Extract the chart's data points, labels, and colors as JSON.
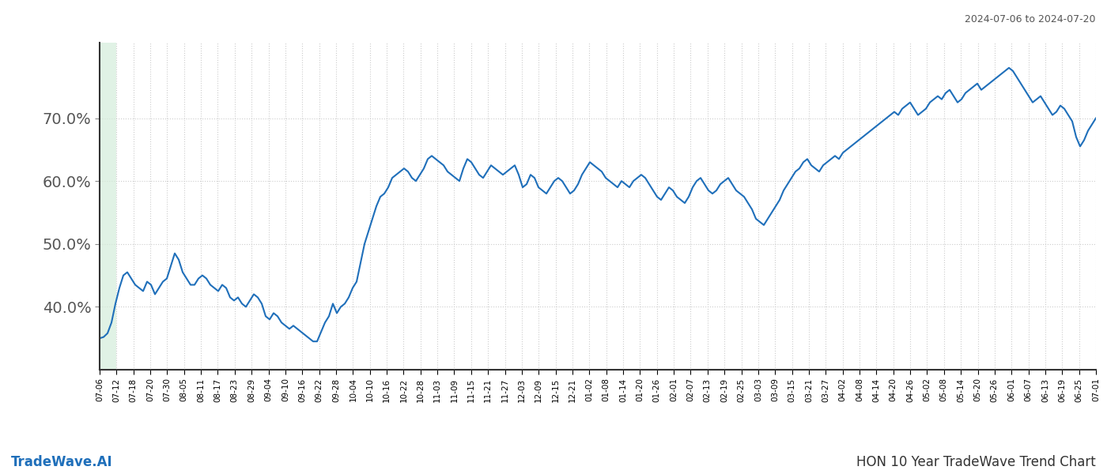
{
  "title_top_right": "2024-07-06 to 2024-07-20",
  "title_bottom_right": "HON 10 Year TradeWave Trend Chart",
  "title_bottom_left": "TradeWave.AI",
  "line_color": "#1f6fba",
  "line_width": 1.5,
  "highlight_color": "#d4edda",
  "highlight_alpha": 0.7,
  "background_color": "#ffffff",
  "grid_color": "#cccccc",
  "grid_linestyle": "dotted",
  "highlight_x_start_label": "07-12",
  "x_tick_labels": [
    "07-06",
    "07-12",
    "07-18",
    "07-20",
    "07-30",
    "08-05",
    "08-11",
    "08-17",
    "08-23",
    "08-29",
    "09-04",
    "09-10",
    "09-16",
    "09-22",
    "09-28",
    "10-04",
    "10-10",
    "10-16",
    "10-22",
    "10-28",
    "11-03",
    "11-09",
    "11-15",
    "11-21",
    "11-27",
    "12-03",
    "12-09",
    "12-15",
    "12-21",
    "01-02",
    "01-08",
    "01-14",
    "01-20",
    "01-26",
    "02-01",
    "02-07",
    "02-13",
    "02-19",
    "02-25",
    "03-03",
    "03-09",
    "03-15",
    "03-21",
    "03-27",
    "04-02",
    "04-08",
    "04-14",
    "04-20",
    "04-26",
    "05-02",
    "05-08",
    "05-14",
    "05-20",
    "05-26",
    "06-01",
    "06-07",
    "06-13",
    "06-19",
    "06-25",
    "07-01"
  ],
  "y_ticks": [
    40.0,
    50.0,
    60.0,
    70.0
  ],
  "ylim": [
    30,
    82
  ],
  "values": [
    35.0,
    35.2,
    35.8,
    37.5,
    40.5,
    43.0,
    45.0,
    45.5,
    44.5,
    43.5,
    43.0,
    42.5,
    44.0,
    43.5,
    42.0,
    43.0,
    44.0,
    44.5,
    46.5,
    48.5,
    47.5,
    45.5,
    44.5,
    43.5,
    43.5,
    44.5,
    45.0,
    44.5,
    43.5,
    43.0,
    42.5,
    43.5,
    43.0,
    41.5,
    41.0,
    41.5,
    40.5,
    40.0,
    41.0,
    42.0,
    41.5,
    40.5,
    38.5,
    38.0,
    39.0,
    38.5,
    37.5,
    37.0,
    36.5,
    37.0,
    36.5,
    36.0,
    35.5,
    35.0,
    34.5,
    34.5,
    36.0,
    37.5,
    38.5,
    40.5,
    39.0,
    40.0,
    40.5,
    41.5,
    43.0,
    44.0,
    47.0,
    50.0,
    52.0,
    54.0,
    56.0,
    57.5,
    58.0,
    59.0,
    60.5,
    61.0,
    61.5,
    62.0,
    61.5,
    60.5,
    60.0,
    61.0,
    62.0,
    63.5,
    64.0,
    63.5,
    63.0,
    62.5,
    61.5,
    61.0,
    60.5,
    60.0,
    62.0,
    63.5,
    63.0,
    62.0,
    61.0,
    60.5,
    61.5,
    62.5,
    62.0,
    61.5,
    61.0,
    61.5,
    62.0,
    62.5,
    61.0,
    59.0,
    59.5,
    61.0,
    60.5,
    59.0,
    58.5,
    58.0,
    59.0,
    60.0,
    60.5,
    60.0,
    59.0,
    58.0,
    58.5,
    59.5,
    61.0,
    62.0,
    63.0,
    62.5,
    62.0,
    61.5,
    60.5,
    60.0,
    59.5,
    59.0,
    60.0,
    59.5,
    59.0,
    60.0,
    60.5,
    61.0,
    60.5,
    59.5,
    58.5,
    57.5,
    57.0,
    58.0,
    59.0,
    58.5,
    57.5,
    57.0,
    56.5,
    57.5,
    59.0,
    60.0,
    60.5,
    59.5,
    58.5,
    58.0,
    58.5,
    59.5,
    60.0,
    60.5,
    59.5,
    58.5,
    58.0,
    57.5,
    56.5,
    55.5,
    54.0,
    53.5,
    53.0,
    54.0,
    55.0,
    56.0,
    57.0,
    58.5,
    59.5,
    60.5,
    61.5,
    62.0,
    63.0,
    63.5,
    62.5,
    62.0,
    61.5,
    62.5,
    63.0,
    63.5,
    64.0,
    63.5,
    64.5,
    65.0,
    65.5,
    66.0,
    66.5,
    67.0,
    67.5,
    68.0,
    68.5,
    69.0,
    69.5,
    70.0,
    70.5,
    71.0,
    70.5,
    71.5,
    72.0,
    72.5,
    71.5,
    70.5,
    71.0,
    71.5,
    72.5,
    73.0,
    73.5,
    73.0,
    74.0,
    74.5,
    73.5,
    72.5,
    73.0,
    74.0,
    74.5,
    75.0,
    75.5,
    74.5,
    75.0,
    75.5,
    76.0,
    76.5,
    77.0,
    77.5,
    78.0,
    77.5,
    76.5,
    75.5,
    74.5,
    73.5,
    72.5,
    73.0,
    73.5,
    72.5,
    71.5,
    70.5,
    71.0,
    72.0,
    71.5,
    70.5,
    69.5,
    67.0,
    65.5,
    66.5,
    68.0,
    69.0,
    70.0
  ]
}
